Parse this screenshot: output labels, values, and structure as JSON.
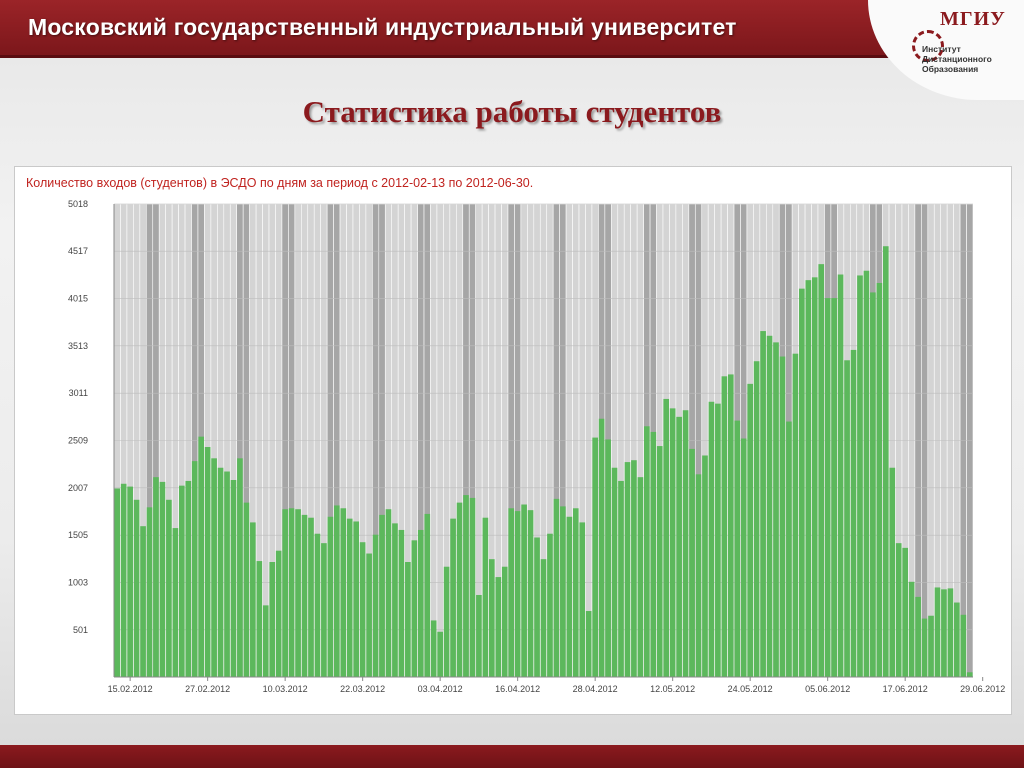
{
  "header": {
    "university": "Московский государственный индустриальный университет",
    "logo_acronym": "МГИУ",
    "logo_lines": [
      "Институт",
      "Дистанционного",
      "Образования"
    ]
  },
  "slide": {
    "title": "Статистика работы студентов"
  },
  "colors": {
    "header_bg": "#8b1a1e",
    "bar_fill": "#5cb85c",
    "bar_edge": "#3f9a3f",
    "weekday_bg": "#d4d4d4",
    "weekend_bg": "#a6a6a6",
    "caption": "#c0231f"
  },
  "chart_data": {
    "type": "bar",
    "title": "Количество входов (студентов) в ЭСДО по дням за период с 2012-02-13 по 2012-06-30.",
    "xlabel": "",
    "ylabel": "",
    "ylim": [
      0,
      5018
    ],
    "yticks": [
      501,
      1003,
      1505,
      2007,
      2509,
      3011,
      3513,
      4015,
      4517,
      5018
    ],
    "ytick_labels": [
      "501",
      "1003",
      "1505",
      "2007",
      "2509",
      "3011",
      "3513",
      "4015",
      "4517",
      "5018"
    ],
    "start_date": "2012-02-13",
    "end_date": "2012-06-30",
    "xtick_labels": [
      {
        "index": 2,
        "label": "15.02.2012"
      },
      {
        "index": 14,
        "label": "27.02.2012"
      },
      {
        "index": 26,
        "label": "10.03.2012"
      },
      {
        "index": 38,
        "label": "22.03.2012"
      },
      {
        "index": 50,
        "label": "03.04.2012"
      },
      {
        "index": 62,
        "label": "16.04.2012"
      },
      {
        "index": 74,
        "label": "28.04.2012"
      },
      {
        "index": 86,
        "label": "12.05.2012"
      },
      {
        "index": 98,
        "label": "24.05.2012"
      },
      {
        "index": 110,
        "label": "05.06.2012"
      },
      {
        "index": 122,
        "label": "17.06.2012"
      },
      {
        "index": 134,
        "label": "29.06.2012"
      }
    ],
    "weekend_indices": [
      5,
      6,
      12,
      13,
      19,
      20,
      26,
      27,
      33,
      34,
      40,
      41,
      47,
      48,
      54,
      55,
      61,
      62,
      68,
      69,
      75,
      76,
      82,
      83,
      89,
      90,
      96,
      97,
      103,
      104,
      110,
      111,
      117,
      118,
      124,
      125,
      131,
      132
    ],
    "values": [
      2000,
      2050,
      2020,
      1880,
      1600,
      1800,
      2120,
      2070,
      1880,
      1580,
      2030,
      2080,
      2290,
      2550,
      2440,
      2320,
      2220,
      2180,
      2090,
      2320,
      1850,
      1640,
      1230,
      760,
      1220,
      1340,
      1780,
      1790,
      1780,
      1720,
      1690,
      1520,
      1420,
      1700,
      1820,
      1790,
      1680,
      1650,
      1430,
      1310,
      1510,
      1720,
      1780,
      1630,
      1560,
      1220,
      1450,
      1560,
      1730,
      600,
      480,
      1170,
      1680,
      1850,
      1930,
      1900,
      870,
      1690,
      1250,
      1060,
      1170,
      1790,
      1760,
      1830,
      1770,
      1480,
      1250,
      1520,
      1890,
      1810,
      1700,
      1790,
      1640,
      700,
      2540,
      2740,
      2520,
      2220,
      2080,
      2280,
      2300,
      2120,
      2660,
      2600,
      2450,
      2950,
      2850,
      2760,
      2830,
      2420,
      2150,
      2350,
      2920,
      2900,
      3190,
      3210,
      2720,
      2530,
      3110,
      3350,
      3670,
      3620,
      3550,
      3400,
      2710,
      3430,
      4120,
      4210,
      4240,
      4380,
      4020,
      4020,
      4270,
      3360,
      3470,
      4260,
      4310,
      4080,
      4180,
      4570,
      2220,
      1420,
      1370,
      1010,
      850,
      620,
      650,
      950,
      930,
      940,
      790,
      660,
      50
    ]
  }
}
